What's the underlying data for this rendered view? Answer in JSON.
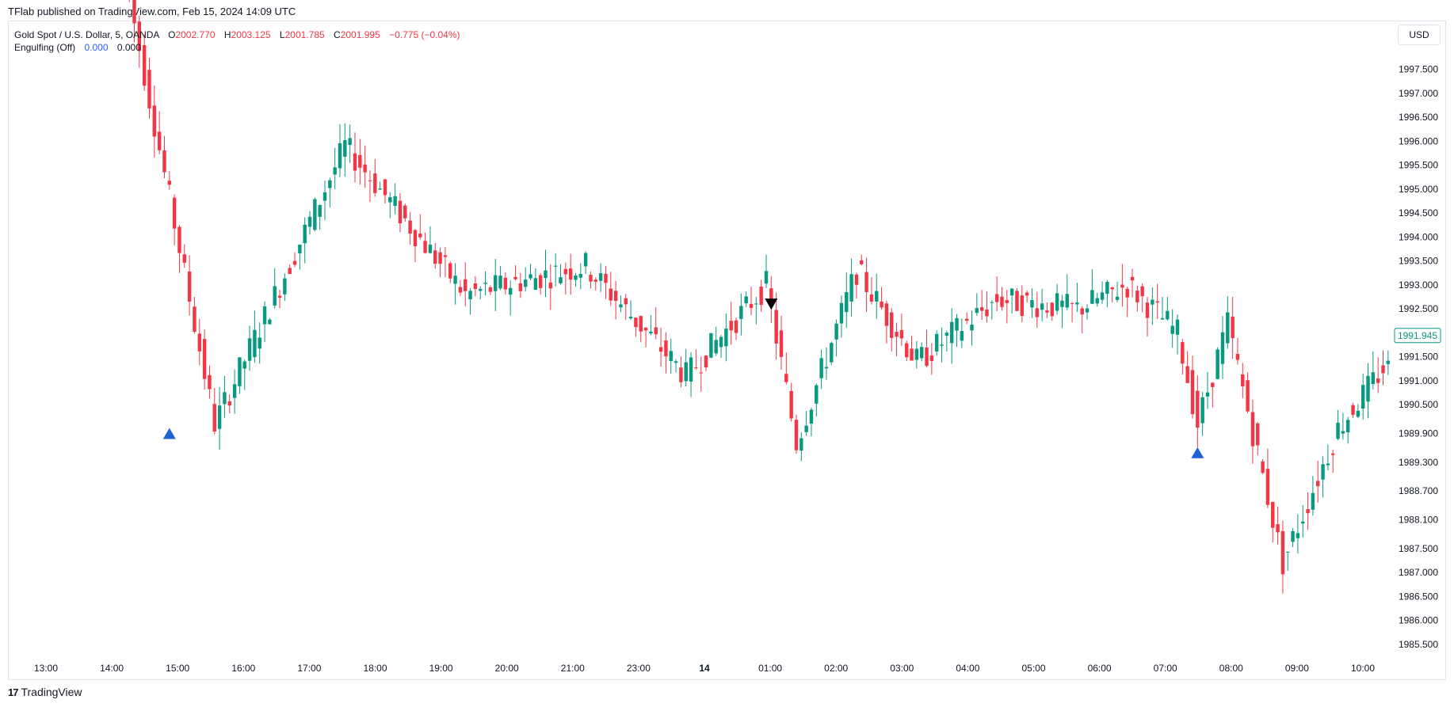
{
  "header": {
    "published": "TFlab published on TradingView.com, Feb 15, 2024 14:09 UTC"
  },
  "legend": {
    "symbol": "Gold Spot / U.S. Dollar, 5, OANDA",
    "o_label": "O",
    "o_value": "2002.770",
    "h_label": "H",
    "h_value": "2003.125",
    "l_label": "L",
    "l_value": "2001.785",
    "c_label": "C",
    "c_value": "2001.995",
    "change": "−0.775 (−0.04%)",
    "indicator_name": "Engulfing (Off)",
    "indicator_v1": "0.000",
    "indicator_v2": "0.000"
  },
  "currency_button": "USD",
  "footer": {
    "brand": "TradingView",
    "logo_glyph": "17"
  },
  "colors": {
    "up": "#089981",
    "down": "#f23645",
    "marker_bull": "#1e63d6",
    "marker_bear": "#000000"
  },
  "chart_data": {
    "type": "candlestick",
    "title": "Gold Spot / U.S. Dollar, 5, OANDA",
    "y_ticks": [
      "1997.500",
      "1997.000",
      "1996.500",
      "1996.000",
      "1995.500",
      "1995.000",
      "1994.500",
      "1994.000",
      "1993.500",
      "1993.000",
      "1992.500",
      "1991.500",
      "1991.000",
      "1990.500",
      "1989.900",
      "1989.300",
      "1988.700",
      "1988.100",
      "1987.500",
      "1987.000",
      "1986.500",
      "1986.000",
      "1985.500"
    ],
    "y_range": [
      1985.2,
      1998.5
    ],
    "x_ticks": [
      "13:00",
      "14:00",
      "15:00",
      "16:00",
      "17:00",
      "18:00",
      "19:00",
      "20:00",
      "21:00",
      "23:00",
      "14",
      "01:00",
      "02:00",
      "03:00",
      "04:00",
      "05:00",
      "06:00",
      "07:00",
      "08:00",
      "09:00",
      "10:00"
    ],
    "last_price_label": "1991.945",
    "segments": [
      {
        "from": 0,
        "to": 18,
        "start": 1999.5,
        "end": 1990.1
      },
      {
        "from": 18,
        "to": 44,
        "start": 1990.1,
        "end": 1995.9
      },
      {
        "from": 44,
        "to": 68,
        "start": 1995.9,
        "end": 1992.8
      },
      {
        "from": 68,
        "to": 92,
        "start": 1992.8,
        "end": 1993.4
      },
      {
        "from": 92,
        "to": 112,
        "start": 1993.4,
        "end": 1991.1
      },
      {
        "from": 112,
        "to": 128,
        "start": 1991.1,
        "end": 1993.0
      },
      {
        "from": 128,
        "to": 134,
        "start": 1993.0,
        "end": 1989.7
      },
      {
        "from": 134,
        "to": 146,
        "start": 1989.7,
        "end": 1993.3
      },
      {
        "from": 146,
        "to": 158,
        "start": 1993.3,
        "end": 1991.4
      },
      {
        "from": 158,
        "to": 174,
        "start": 1991.4,
        "end": 1992.7
      },
      {
        "from": 174,
        "to": 190,
        "start": 1992.7,
        "end": 1992.5
      },
      {
        "from": 190,
        "to": 200,
        "start": 1992.5,
        "end": 1993.0
      },
      {
        "from": 200,
        "to": 210,
        "start": 1993.0,
        "end": 1992.0
      },
      {
        "from": 210,
        "to": 214,
        "start": 1992.0,
        "end": 1990.1
      },
      {
        "from": 214,
        "to": 220,
        "start": 1990.1,
        "end": 1992.2
      },
      {
        "from": 220,
        "to": 231,
        "start": 1992.2,
        "end": 1987.2
      },
      {
        "from": 231,
        "to": 242,
        "start": 1987.2,
        "end": 1990.0
      },
      {
        "from": 242,
        "to": 252,
        "start": 1990.0,
        "end": 1991.4
      }
    ],
    "candle_count": 252,
    "markers": [
      {
        "bar": 8,
        "type": "bullish-engulfing",
        "shape": "triangle-up",
        "price": 1989.9
      },
      {
        "bar": 128,
        "type": "bearish-engulfing",
        "shape": "triangle-down",
        "price": 1992.6
      },
      {
        "bar": 213,
        "type": "bullish-engulfing",
        "shape": "triangle-up",
        "price": 1989.5
      }
    ],
    "grid": false
  }
}
